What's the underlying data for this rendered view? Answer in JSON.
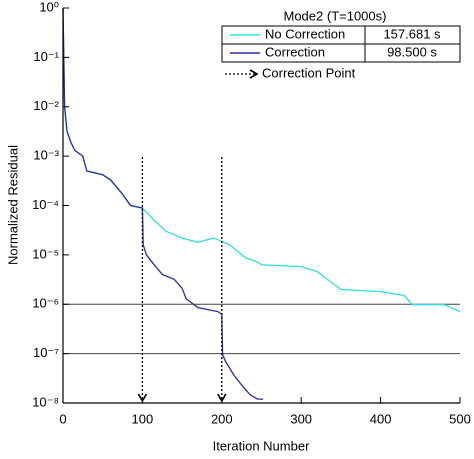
{
  "chart_data": {
    "type": "line",
    "xlabel": "Iteration Number",
    "ylabel": "Normalized Residual",
    "legend_title": "Mode2 (T=1000s)",
    "correction_label": "Correction Point",
    "correction_points": [
      100,
      200
    ],
    "reference_lines": [
      1e-06,
      1e-07
    ],
    "xlim": [
      0,
      500
    ],
    "xticks": [
      0,
      100,
      200,
      300,
      400,
      500
    ],
    "ylim": [
      1e-08,
      1
    ],
    "log_y": true,
    "yticks": [
      {
        "value": 1,
        "label": "10⁰"
      },
      {
        "value": 0.1,
        "label": "10⁻¹"
      },
      {
        "value": 0.01,
        "label": "10⁻²"
      },
      {
        "value": 0.001,
        "label": "10⁻³"
      },
      {
        "value": 0.0001,
        "label": "10⁻⁴"
      },
      {
        "value": 1e-05,
        "label": "10⁻⁵"
      },
      {
        "value": 1e-06,
        "label": "10⁻⁶"
      },
      {
        "value": 1e-07,
        "label": "10⁻⁷"
      },
      {
        "value": 1e-08,
        "label": "10⁻⁸"
      }
    ],
    "series": [
      {
        "name": "No Correction",
        "time": "157.681 s",
        "color": "#33dde0",
        "x": [
          0,
          1,
          2,
          5,
          10,
          15,
          25,
          30,
          50,
          60,
          75,
          85,
          100,
          115,
          130,
          150,
          170,
          190,
          210,
          230,
          245,
          250,
          300,
          320,
          350,
          400,
          430,
          440,
          480,
          500
        ],
        "values": [
          1,
          0.1,
          0.01,
          0.0032,
          0.0019,
          0.0013,
          0.001,
          0.0005,
          0.00042,
          0.00033,
          0.00017,
          0.0001,
          8.9e-05,
          5e-05,
          3e-05,
          2.2e-05,
          1.8e-05,
          2.2e-05,
          1.6e-05,
          8.7e-06,
          7.2e-06,
          6.3e-06,
          5.8e-06,
          4.6e-06,
          2e-06,
          1.8e-06,
          1.5e-06,
          9.8e-07,
          9.8e-07,
          7.1e-07
        ]
      },
      {
        "name": "Correction",
        "time": "98.500 s",
        "color": "#2a2aa8",
        "x": [
          0,
          1,
          2,
          5,
          10,
          15,
          25,
          30,
          50,
          60,
          75,
          85,
          100,
          101,
          105,
          115,
          125,
          140,
          150,
          155,
          170,
          195,
          200,
          201,
          205,
          215,
          225,
          235,
          245,
          252
        ],
        "values": [
          1,
          0.1,
          0.01,
          0.0032,
          0.0019,
          0.0013,
          0.001,
          0.0005,
          0.00042,
          0.00033,
          0.00017,
          0.0001,
          8.9e-05,
          1.6e-05,
          1e-05,
          6.3e-06,
          4e-06,
          3.2e-06,
          2.1e-06,
          1.3e-06,
          8.5e-07,
          7.1e-07,
          6.3e-07,
          9.5e-08,
          6.8e-08,
          3.7e-08,
          2.3e-08,
          1.5e-08,
          1.2e-08,
          1.2e-08
        ]
      }
    ]
  }
}
